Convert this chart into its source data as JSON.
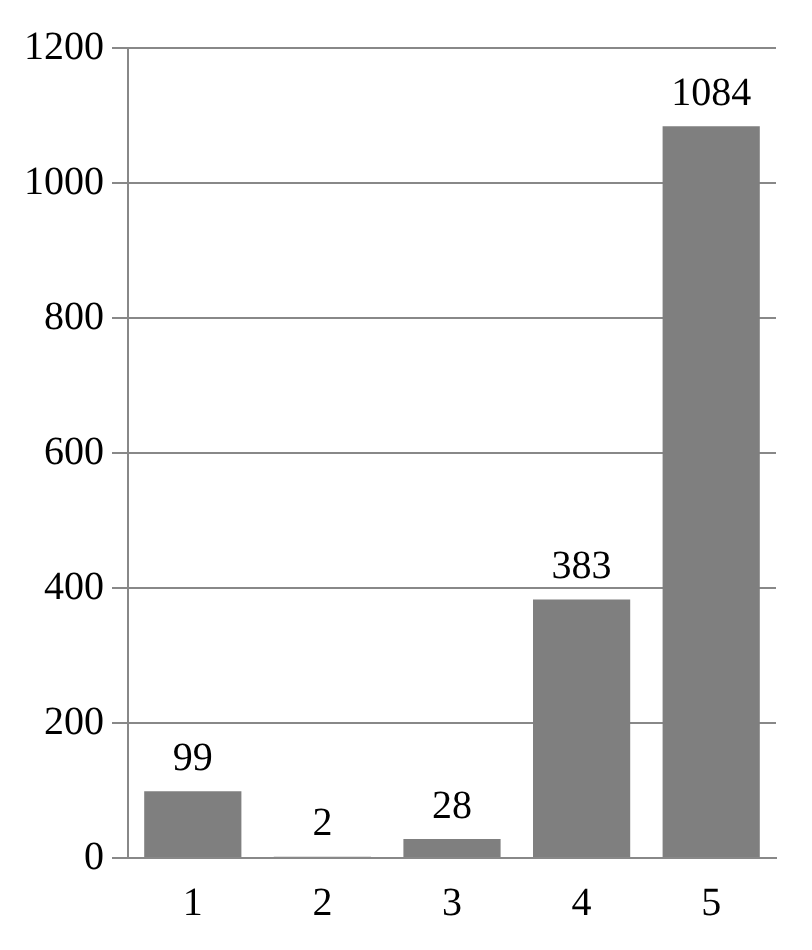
{
  "chart_data": {
    "type": "bar",
    "categories": [
      "1",
      "2",
      "3",
      "4",
      "5"
    ],
    "values": [
      99,
      2,
      28,
      383,
      1084
    ],
    "color": "#7f7f7f",
    "ylim": [
      0,
      1200
    ],
    "yticks": [
      0,
      200,
      400,
      600,
      800,
      1000,
      1200
    ],
    "grid": "y",
    "data_labels": true,
    "legend": false
  }
}
